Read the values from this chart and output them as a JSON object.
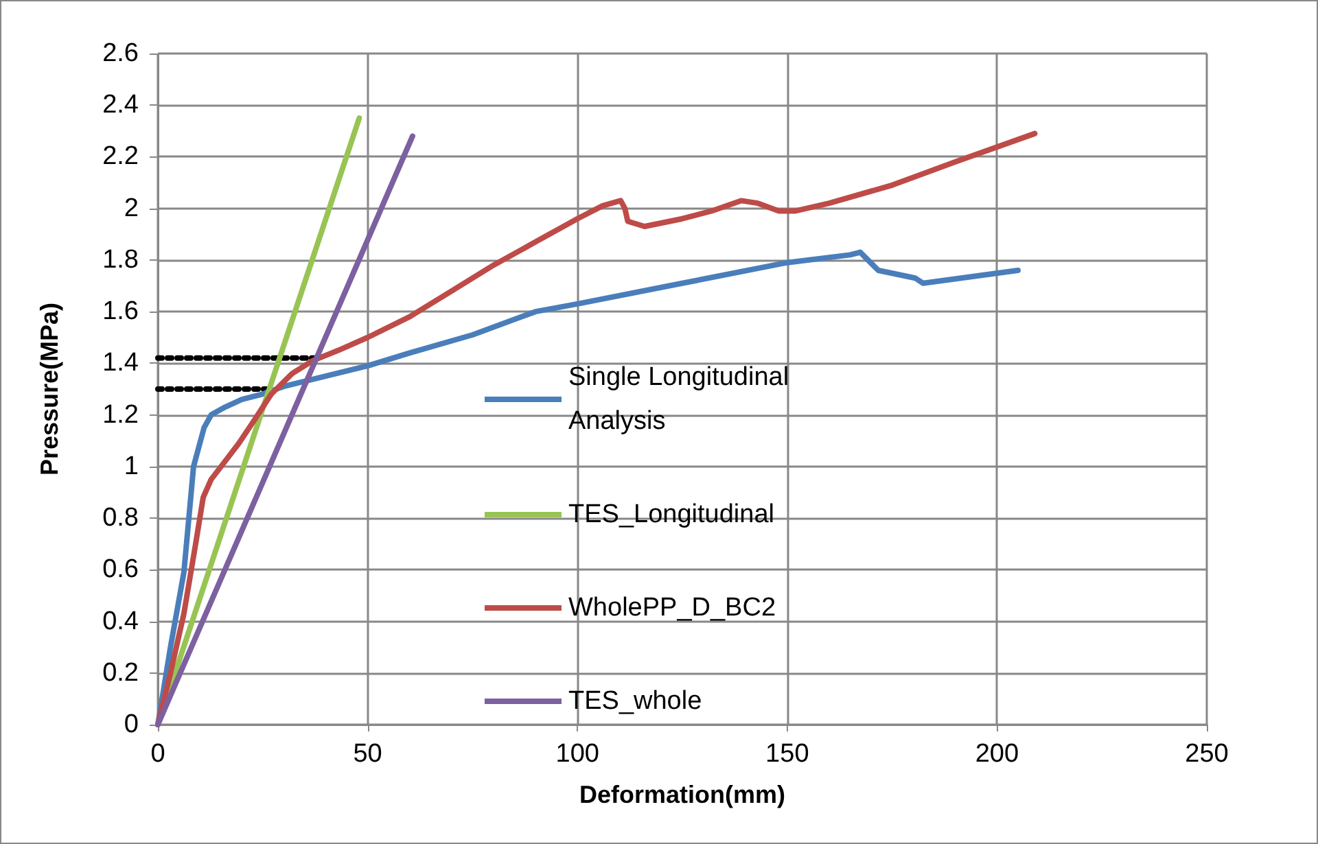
{
  "chart_data": {
    "type": "line",
    "xlabel": "Deformation(mm)",
    "ylabel": "Pressure(MPa)",
    "xlim": [
      0,
      250
    ],
    "xticks": [
      0,
      50,
      100,
      150,
      200,
      250
    ],
    "ylim": [
      0,
      2.6
    ],
    "yticks": [
      0,
      0.2,
      0.4,
      0.6,
      0.8,
      1,
      1.2,
      1.4,
      1.6,
      1.8,
      2,
      2.2,
      2.4,
      2.6
    ],
    "grid": true,
    "legend": "right",
    "marker": "none",
    "line_style": "solid",
    "series": [
      {
        "name": "Single Longitudinal Analysis",
        "color": "#4a7ebb",
        "x": [
          0,
          3,
          6.2,
          8.5,
          11,
          12.7,
          16,
          20,
          24.8,
          30,
          40,
          50,
          60,
          75,
          90,
          100,
          125,
          150,
          165,
          167.4,
          171.7,
          180.5,
          182.4,
          205
        ],
        "values": [
          0,
          0.3,
          0.59,
          1.0,
          1.15,
          1.2,
          1.23,
          1.26,
          1.28,
          1.31,
          1.35,
          1.39,
          1.44,
          1.51,
          1.6,
          1.63,
          1.71,
          1.79,
          1.82,
          1.83,
          1.76,
          1.73,
          1.71,
          1.76
        ]
      },
      {
        "name": "TES_Longitudinal",
        "color": "#98c454",
        "x": [
          0,
          48
        ],
        "values": [
          0,
          2.35
        ]
      },
      {
        "name": "WholePP_D_BC2",
        "color": "#be4b48",
        "x": [
          0,
          3,
          6.2,
          9,
          10.8,
          12.7,
          16,
          19.3,
          23,
          27,
          32,
          36.9,
          43,
          50,
          60,
          70,
          80,
          90,
          100,
          106,
          110.3,
          111.3,
          112,
          116,
          125,
          132,
          139,
          143,
          148,
          152,
          160,
          175,
          190,
          209
        ],
        "values": [
          0,
          0.2,
          0.43,
          0.7,
          0.88,
          0.95,
          1.02,
          1.09,
          1.18,
          1.28,
          1.36,
          1.41,
          1.45,
          1.5,
          1.58,
          1.68,
          1.78,
          1.87,
          1.96,
          2.01,
          2.03,
          2.0,
          1.95,
          1.93,
          1.96,
          1.99,
          2.03,
          2.02,
          1.99,
          1.99,
          2.02,
          2.09,
          2.18,
          2.29
        ]
      },
      {
        "name": "TES_whole",
        "color": "#7d60a0",
        "x": [
          0,
          60.7
        ],
        "values": [
          0,
          2.28
        ]
      },
      {
        "color": "#000000",
        "line_style": "dotted",
        "x": [
          0,
          37.9
        ],
        "values": [
          1.42,
          1.42
        ]
      },
      {
        "color": "#000000",
        "line_style": "dotted",
        "x": [
          0,
          27
        ],
        "values": [
          1.3,
          1.3
        ]
      }
    ]
  }
}
